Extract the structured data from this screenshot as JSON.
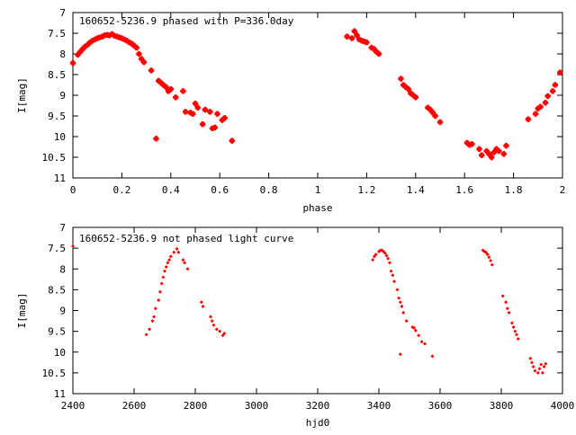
{
  "chart_data": [
    {
      "type": "scatter",
      "title": "160652-5236.9 phased with P=336.0day",
      "xlabel": "phase",
      "ylabel": "I[mag]",
      "xlim": [
        0,
        2
      ],
      "ylim": [
        7,
        11
      ],
      "y_inverted": true,
      "xticks": [
        0,
        0.2,
        0.4,
        0.6,
        0.8,
        1,
        1.2,
        1.4,
        1.6,
        1.8,
        2
      ],
      "xtick_labels": [
        "0",
        "0.2",
        "0.4",
        "0.6",
        "0.8",
        "1",
        "1.2",
        "1.4",
        "1.6",
        "1.8",
        "2"
      ],
      "yticks": [
        7,
        7.5,
        8,
        8.5,
        9,
        9.5,
        10,
        10.5,
        11
      ],
      "ytick_labels": [
        "7",
        "7.5",
        "8",
        "8.5",
        "9",
        "9.5",
        "10",
        "10.5",
        "11"
      ],
      "grid": false,
      "marker_color": "#ff0000",
      "points": [
        [
          0.0,
          8.22
        ],
        [
          0.02,
          8.02
        ],
        [
          0.03,
          7.95
        ],
        [
          0.04,
          7.88
        ],
        [
          0.05,
          7.82
        ],
        [
          0.06,
          7.78
        ],
        [
          0.07,
          7.72
        ],
        [
          0.08,
          7.68
        ],
        [
          0.09,
          7.65
        ],
        [
          0.1,
          7.62
        ],
        [
          0.11,
          7.6
        ],
        [
          0.12,
          7.58
        ],
        [
          0.13,
          7.55
        ],
        [
          0.14,
          7.54
        ],
        [
          0.15,
          7.55
        ],
        [
          0.16,
          7.52
        ],
        [
          0.17,
          7.56
        ],
        [
          0.18,
          7.58
        ],
        [
          0.19,
          7.6
        ],
        [
          0.2,
          7.62
        ],
        [
          0.21,
          7.65
        ],
        [
          0.22,
          7.68
        ],
        [
          0.23,
          7.72
        ],
        [
          0.24,
          7.75
        ],
        [
          0.25,
          7.8
        ],
        [
          0.26,
          7.85
        ],
        [
          0.27,
          8.0
        ],
        [
          0.28,
          8.12
        ],
        [
          0.29,
          8.2
        ],
        [
          0.32,
          8.4
        ],
        [
          0.34,
          10.05
        ],
        [
          0.35,
          8.65
        ],
        [
          0.36,
          8.7
        ],
        [
          0.37,
          8.75
        ],
        [
          0.38,
          8.8
        ],
        [
          0.39,
          8.9
        ],
        [
          0.4,
          8.85
        ],
        [
          0.42,
          9.05
        ],
        [
          0.45,
          8.9
        ],
        [
          0.46,
          9.4
        ],
        [
          0.48,
          9.42
        ],
        [
          0.49,
          9.45
        ],
        [
          0.5,
          9.2
        ],
        [
          0.51,
          9.3
        ],
        [
          0.53,
          9.7
        ],
        [
          0.54,
          9.35
        ],
        [
          0.56,
          9.4
        ],
        [
          0.57,
          9.8
        ],
        [
          0.58,
          9.78
        ],
        [
          0.59,
          9.45
        ],
        [
          0.61,
          9.6
        ],
        [
          0.62,
          9.55
        ],
        [
          0.65,
          10.1
        ],
        [
          1.12,
          7.58
        ],
        [
          1.14,
          7.62
        ],
        [
          1.15,
          7.45
        ],
        [
          1.16,
          7.55
        ],
        [
          1.17,
          7.65
        ],
        [
          1.18,
          7.68
        ],
        [
          1.19,
          7.7
        ],
        [
          1.2,
          7.72
        ],
        [
          1.22,
          7.85
        ],
        [
          1.23,
          7.88
        ],
        [
          1.24,
          7.95
        ],
        [
          1.25,
          8.0
        ],
        [
          1.34,
          8.6
        ],
        [
          1.35,
          8.75
        ],
        [
          1.36,
          8.8
        ],
        [
          1.37,
          8.85
        ],
        [
          1.38,
          8.95
        ],
        [
          1.39,
          9.0
        ],
        [
          1.4,
          9.05
        ],
        [
          1.45,
          9.3
        ],
        [
          1.46,
          9.35
        ],
        [
          1.47,
          9.42
        ],
        [
          1.48,
          9.5
        ],
        [
          1.5,
          9.65
        ],
        [
          1.61,
          10.15
        ],
        [
          1.62,
          10.2
        ],
        [
          1.63,
          10.18
        ],
        [
          1.66,
          10.3
        ],
        [
          1.67,
          10.45
        ],
        [
          1.69,
          10.35
        ],
        [
          1.7,
          10.42
        ],
        [
          1.71,
          10.5
        ],
        [
          1.72,
          10.38
        ],
        [
          1.73,
          10.3
        ],
        [
          1.74,
          10.35
        ],
        [
          1.76,
          10.42
        ],
        [
          1.77,
          10.22
        ],
        [
          1.86,
          9.58
        ],
        [
          1.89,
          9.45
        ],
        [
          1.9,
          9.32
        ],
        [
          1.91,
          9.28
        ],
        [
          1.93,
          9.18
        ],
        [
          1.94,
          9.02
        ],
        [
          1.96,
          8.9
        ],
        [
          1.97,
          8.75
        ],
        [
          1.99,
          8.45
        ]
      ]
    },
    {
      "type": "scatter",
      "title": "160652-5236.9 not phased light curve",
      "xlabel": "hjd0",
      "ylabel": "I[mag]",
      "xlim": [
        2400,
        4000
      ],
      "ylim": [
        7,
        11
      ],
      "y_inverted": true,
      "xticks": [
        2400,
        2600,
        2800,
        3000,
        3200,
        3400,
        3600,
        3800,
        4000
      ],
      "xtick_labels": [
        "2400",
        "2600",
        "2800",
        "3000",
        "3200",
        "3400",
        "3600",
        "3800",
        "4000"
      ],
      "yticks": [
        7,
        7.5,
        8,
        8.5,
        9,
        9.5,
        10,
        10.5,
        11
      ],
      "ytick_labels": [
        "7",
        "7.5",
        "8",
        "8.5",
        "9",
        "9.5",
        "10",
        "10.5",
        "11"
      ],
      "grid": false,
      "marker_color": "#ff0000",
      "points": [
        [
          2400,
          7.45
        ],
        [
          2640,
          9.58
        ],
        [
          2650,
          9.45
        ],
        [
          2660,
          9.25
        ],
        [
          2665,
          9.15
        ],
        [
          2670,
          8.95
        ],
        [
          2680,
          8.75
        ],
        [
          2685,
          8.55
        ],
        [
          2690,
          8.35
        ],
        [
          2695,
          8.2
        ],
        [
          2700,
          8.05
        ],
        [
          2705,
          7.95
        ],
        [
          2710,
          7.85
        ],
        [
          2715,
          7.78
        ],
        [
          2720,
          7.7
        ],
        [
          2730,
          7.6
        ],
        [
          2740,
          7.52
        ],
        [
          2745,
          7.6
        ],
        [
          2760,
          7.78
        ],
        [
          2765,
          7.85
        ],
        [
          2775,
          8.0
        ],
        [
          2820,
          8.8
        ],
        [
          2825,
          8.9
        ],
        [
          2850,
          9.15
        ],
        [
          2855,
          9.25
        ],
        [
          2860,
          9.35
        ],
        [
          2870,
          9.45
        ],
        [
          2880,
          9.5
        ],
        [
          2890,
          9.6
        ],
        [
          2895,
          9.55
        ],
        [
          3380,
          7.78
        ],
        [
          3385,
          7.7
        ],
        [
          3390,
          7.65
        ],
        [
          3400,
          7.58
        ],
        [
          3405,
          7.55
        ],
        [
          3410,
          7.55
        ],
        [
          3415,
          7.58
        ],
        [
          3420,
          7.62
        ],
        [
          3425,
          7.68
        ],
        [
          3430,
          7.75
        ],
        [
          3435,
          7.85
        ],
        [
          3440,
          8.05
        ],
        [
          3445,
          8.15
        ],
        [
          3450,
          8.3
        ],
        [
          3460,
          8.5
        ],
        [
          3465,
          8.7
        ],
        [
          3470,
          8.8
        ],
        [
          3475,
          8.9
        ],
        [
          3470,
          10.05
        ],
        [
          3480,
          9.05
        ],
        [
          3490,
          9.25
        ],
        [
          3510,
          9.4
        ],
        [
          3515,
          9.42
        ],
        [
          3520,
          9.48
        ],
        [
          3530,
          9.6
        ],
        [
          3540,
          9.75
        ],
        [
          3550,
          9.8
        ],
        [
          3575,
          10.1
        ],
        [
          3740,
          7.55
        ],
        [
          3745,
          7.58
        ],
        [
          3750,
          7.6
        ],
        [
          3755,
          7.65
        ],
        [
          3760,
          7.72
        ],
        [
          3765,
          7.8
        ],
        [
          3770,
          7.9
        ],
        [
          3805,
          8.65
        ],
        [
          3815,
          8.8
        ],
        [
          3820,
          8.95
        ],
        [
          3825,
          9.05
        ],
        [
          3835,
          9.3
        ],
        [
          3840,
          9.4
        ],
        [
          3845,
          9.5
        ],
        [
          3850,
          9.58
        ],
        [
          3855,
          9.68
        ],
        [
          3895,
          10.15
        ],
        [
          3900,
          10.25
        ],
        [
          3905,
          10.35
        ],
        [
          3910,
          10.45
        ],
        [
          3920,
          10.5
        ],
        [
          3925,
          10.4
        ],
        [
          3930,
          10.3
        ],
        [
          3935,
          10.5
        ],
        [
          3940,
          10.35
        ],
        [
          3945,
          10.28
        ]
      ]
    }
  ]
}
